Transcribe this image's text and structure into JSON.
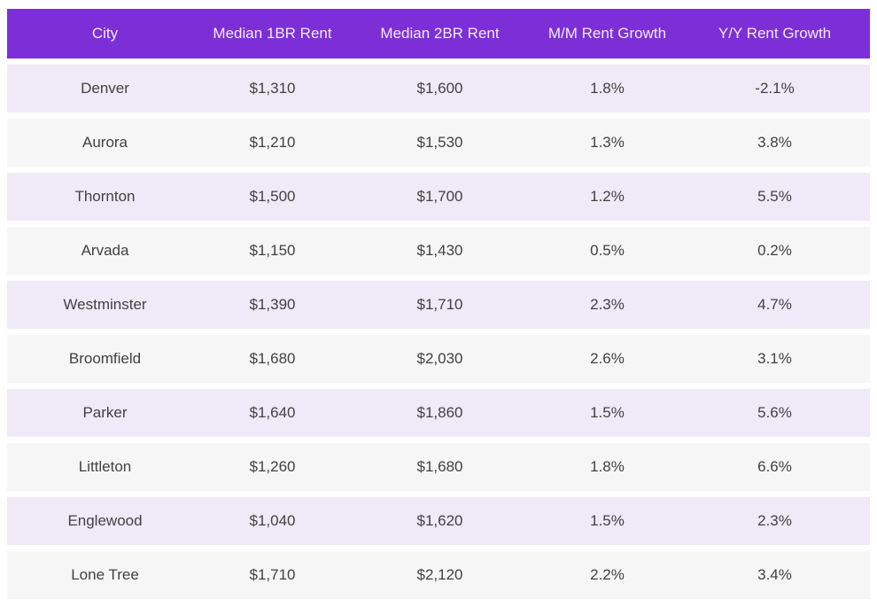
{
  "chart_data": {
    "type": "table",
    "columns": [
      "City",
      "Median 1BR Rent",
      "Median 2BR Rent",
      "M/M Rent Growth",
      "Y/Y Rent Growth"
    ],
    "rows": [
      [
        "Denver",
        "$1,310",
        "$1,600",
        "1.8%",
        "-2.1%"
      ],
      [
        "Aurora",
        "$1,210",
        "$1,530",
        "1.3%",
        "3.8%"
      ],
      [
        "Thornton",
        "$1,500",
        "$1,700",
        "1.2%",
        "5.5%"
      ],
      [
        "Arvada",
        "$1,150",
        "$1,430",
        "0.5%",
        "0.2%"
      ],
      [
        "Westminster",
        "$1,390",
        "$1,710",
        "2.3%",
        "4.7%"
      ],
      [
        "Broomfield",
        "$1,680",
        "$2,030",
        "2.6%",
        "3.1%"
      ],
      [
        "Parker",
        "$1,640",
        "$1,860",
        "1.5%",
        "5.6%"
      ],
      [
        "Littleton",
        "$1,260",
        "$1,680",
        "1.8%",
        "6.6%"
      ],
      [
        "Englewood",
        "$1,040",
        "$1,620",
        "1.5%",
        "2.3%"
      ],
      [
        "Lone Tree",
        "$1,710",
        "$2,120",
        "2.2%",
        "3.4%"
      ]
    ]
  },
  "colors": {
    "header_bg": "#7C2FD6",
    "header_text": "#F3EBFB",
    "row_alt_bg": "#F0E9F8",
    "row_bg": "#F7F6F7",
    "body_text": "#414141",
    "page_bg": "#FFFFFF"
  }
}
